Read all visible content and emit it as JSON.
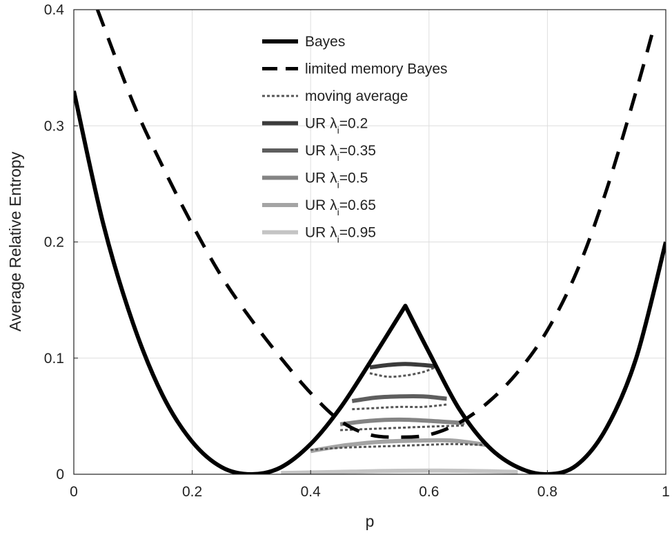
{
  "chart_data": {
    "type": "line",
    "xlabel": "p",
    "ylabel": "Average Relative Entropy",
    "xlim": [
      0,
      1
    ],
    "ylim": [
      0,
      0.4
    ],
    "x_ticks": [
      "0",
      "0.2",
      "0.4",
      "0.6",
      "0.8",
      "1"
    ],
    "y_ticks": [
      "0",
      "0.1",
      "0.2",
      "0.3",
      "0.4"
    ],
    "grid": true,
    "legend_position": "top-center",
    "series": [
      {
        "name": "Bayes",
        "style": "solid",
        "color": "#000000",
        "x": [
          0.0,
          0.05,
          0.1,
          0.15,
          0.2,
          0.25,
          0.3,
          0.35,
          0.4,
          0.45,
          0.5,
          0.56,
          0.6,
          0.65,
          0.7,
          0.75,
          0.8,
          0.85,
          0.9,
          0.95,
          1.0
        ],
        "y": [
          0.33,
          0.215,
          0.13,
          0.068,
          0.028,
          0.006,
          0.0,
          0.006,
          0.026,
          0.057,
          0.096,
          0.145,
          0.105,
          0.057,
          0.024,
          0.006,
          0.0,
          0.008,
          0.04,
          0.1,
          0.2
        ]
      },
      {
        "name": "limited memory Bayes",
        "style": "dashed",
        "color": "#000000",
        "x": [
          0.04,
          0.1,
          0.15,
          0.2,
          0.25,
          0.3,
          0.35,
          0.4,
          0.45,
          0.5,
          0.55,
          0.6,
          0.65,
          0.7,
          0.75,
          0.8,
          0.85,
          0.9,
          0.95,
          0.98
        ],
        "y": [
          0.4,
          0.32,
          0.265,
          0.215,
          0.17,
          0.133,
          0.1,
          0.07,
          0.046,
          0.034,
          0.032,
          0.034,
          0.044,
          0.062,
          0.088,
          0.124,
          0.175,
          0.245,
          0.33,
          0.385
        ]
      },
      {
        "name": "moving average",
        "style": "dotted",
        "color": "#555555",
        "bands": [
          {
            "x": [
              0.5,
              0.53,
              0.56,
              0.59,
              0.61
            ],
            "y": [
              0.087,
              0.084,
              0.085,
              0.088,
              0.092
            ]
          },
          {
            "x": [
              0.47,
              0.51,
              0.55,
              0.59,
              0.63
            ],
            "y": [
              0.056,
              0.057,
              0.058,
              0.058,
              0.06
            ]
          },
          {
            "x": [
              0.45,
              0.5,
              0.55,
              0.6,
              0.66
            ],
            "y": [
              0.038,
              0.039,
              0.04,
              0.041,
              0.042
            ]
          },
          {
            "x": [
              0.4,
              0.46,
              0.52,
              0.58,
              0.64,
              0.7
            ],
            "y": [
              0.021,
              0.023,
              0.024,
              0.025,
              0.026,
              0.025
            ]
          }
        ]
      },
      {
        "name": "UR λi=0.2",
        "style": "solid",
        "color": "#3b3b3b",
        "x": [
          0.5,
          0.53,
          0.56,
          0.59,
          0.61
        ],
        "y": [
          0.092,
          0.094,
          0.095,
          0.094,
          0.093
        ]
      },
      {
        "name": "UR λi=0.35",
        "style": "solid",
        "color": "#5e5e5e",
        "x": [
          0.47,
          0.51,
          0.55,
          0.59,
          0.63
        ],
        "y": [
          0.063,
          0.066,
          0.067,
          0.067,
          0.065
        ]
      },
      {
        "name": "UR λi=0.5",
        "style": "solid",
        "color": "#848484",
        "x": [
          0.45,
          0.5,
          0.55,
          0.6,
          0.66
        ],
        "y": [
          0.043,
          0.046,
          0.047,
          0.046,
          0.044
        ]
      },
      {
        "name": "UR λi=0.65",
        "style": "solid",
        "color": "#a4a4a4",
        "x": [
          0.4,
          0.46,
          0.52,
          0.58,
          0.64,
          0.7
        ],
        "y": [
          0.02,
          0.025,
          0.028,
          0.029,
          0.029,
          0.025
        ]
      },
      {
        "name": "UR λi=0.95",
        "style": "solid",
        "color": "#c4c4c4",
        "x": [
          0.35,
          0.45,
          0.55,
          0.65,
          0.75
        ],
        "y": [
          0.001,
          0.002,
          0.003,
          0.003,
          0.002
        ]
      }
    ]
  },
  "legend": [
    {
      "series": "Bayes",
      "label": "Bayes",
      "sub": ""
    },
    {
      "series": "limited memory Bayes",
      "label": "limited memory Bayes",
      "sub": ""
    },
    {
      "series": "moving average",
      "label": "moving average",
      "sub": ""
    },
    {
      "series": "UR λi=0.2",
      "label": "UR λ",
      "sub": "i",
      "suffix": "=0.2"
    },
    {
      "series": "UR λi=0.35",
      "label": "UR λ",
      "sub": "i",
      "suffix": "=0.35"
    },
    {
      "series": "UR λi=0.5",
      "label": "UR λ",
      "sub": "i",
      "suffix": "=0.5"
    },
    {
      "series": "UR λi=0.65",
      "label": "UR λ",
      "sub": "i",
      "suffix": "=0.65"
    },
    {
      "series": "UR λi=0.95",
      "label": "UR λ",
      "sub": "i",
      "suffix": "=0.95"
    }
  ]
}
